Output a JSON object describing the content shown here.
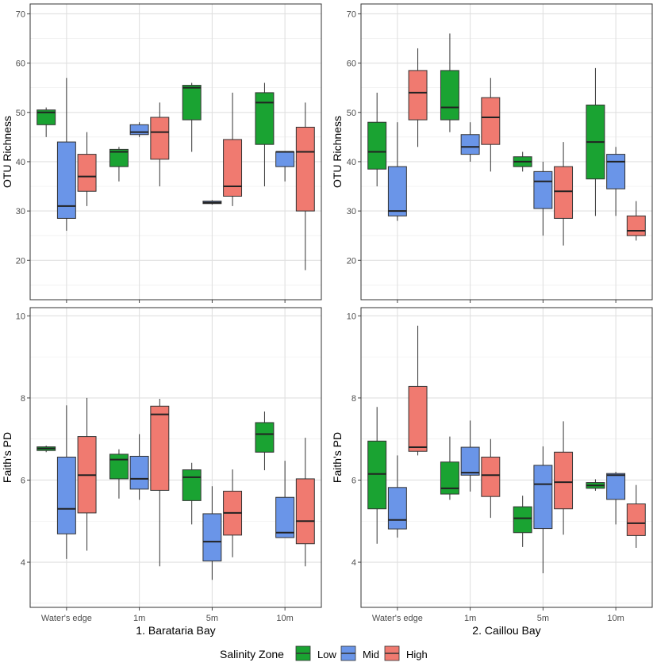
{
  "colors": {
    "low": "#1aa332",
    "mid": "#6a95e8",
    "high": "#f07a70",
    "grid": "#ebebeb",
    "panel_border": "#333333",
    "tick_text": "#4d4d4d"
  },
  "chart_data": [
    {
      "type": "box",
      "panel": "top-left",
      "ylabel": "OTU Richness",
      "xlabel": "",
      "ylim": [
        12,
        72
      ],
      "yticks": [
        20,
        30,
        40,
        50,
        60,
        70
      ],
      "categories": [
        "Water's edge",
        "1m",
        "5m",
        "10m"
      ],
      "series": [
        {
          "name": "Low",
          "color_key": "low",
          "boxes": [
            {
              "min": 45,
              "q1": 47.5,
              "median": 50,
              "q3": 50.5,
              "max": 51
            },
            {
              "min": 36,
              "q1": 39,
              "median": 42,
              "q3": 42.5,
              "max": 43
            },
            {
              "min": 42,
              "q1": 48.5,
              "median": 55,
              "q3": 55.5,
              "max": 56
            },
            {
              "min": 35,
              "q1": 43.5,
              "median": 52,
              "q3": 54,
              "max": 56
            }
          ]
        },
        {
          "name": "Mid",
          "color_key": "mid",
          "boxes": [
            {
              "min": 26,
              "q1": 28.5,
              "median": 31,
              "q3": 44,
              "max": 57
            },
            {
              "min": 45,
              "q1": 45.5,
              "median": 46,
              "q3": 47.5,
              "max": 48
            },
            {
              "min": 31.3,
              "q1": 31.5,
              "median": 31.7,
              "q3": 32,
              "max": 32.2
            },
            {
              "min": 36,
              "q1": 39,
              "median": 42,
              "q3": 42,
              "max": 42
            }
          ]
        },
        {
          "name": "High",
          "color_key": "high",
          "boxes": [
            {
              "min": 31,
              "q1": 34,
              "median": 37,
              "q3": 41.5,
              "max": 46
            },
            {
              "min": 35,
              "q1": 40.5,
              "median": 46,
              "q3": 49,
              "max": 52
            },
            {
              "min": 31,
              "q1": 33,
              "median": 35,
              "q3": 44.5,
              "max": 54
            },
            {
              "min": 18,
              "q1": 30,
              "median": 42,
              "q3": 47,
              "max": 52
            }
          ]
        }
      ]
    },
    {
      "type": "box",
      "panel": "top-right",
      "ylabel": "OTU Richness",
      "xlabel": "",
      "ylim": [
        12,
        72
      ],
      "yticks": [
        20,
        30,
        40,
        50,
        60,
        70
      ],
      "categories": [
        "Water's edge",
        "1m",
        "5m",
        "10m"
      ],
      "series": [
        {
          "name": "Low",
          "color_key": "low",
          "boxes": [
            {
              "min": 35,
              "q1": 38.5,
              "median": 42,
              "q3": 48,
              "max": 54
            },
            {
              "min": 46,
              "q1": 48.5,
              "median": 51,
              "q3": 58.5,
              "max": 66
            },
            {
              "min": 38,
              "q1": 39,
              "median": 40,
              "q3": 41,
              "max": 42
            },
            {
              "min": 29,
              "q1": 36.5,
              "median": 44,
              "q3": 51.5,
              "max": 59
            }
          ]
        },
        {
          "name": "Mid",
          "color_key": "mid",
          "boxes": [
            {
              "min": 28,
              "q1": 29,
              "median": 30,
              "q3": 39,
              "max": 48
            },
            {
              "min": 40,
              "q1": 41.5,
              "median": 43,
              "q3": 45.5,
              "max": 48
            },
            {
              "min": 25,
              "q1": 30.5,
              "median": 36,
              "q3": 38,
              "max": 40
            },
            {
              "min": 29,
              "q1": 34.5,
              "median": 40,
              "q3": 41.5,
              "max": 43
            }
          ]
        },
        {
          "name": "High",
          "color_key": "high",
          "boxes": [
            {
              "min": 43,
              "q1": 48.5,
              "median": 54,
              "q3": 58.5,
              "max": 63
            },
            {
              "min": 38,
              "q1": 43.5,
              "median": 49,
              "q3": 53,
              "max": 57
            },
            {
              "min": 23,
              "q1": 28.5,
              "median": 34,
              "q3": 39,
              "max": 44
            },
            {
              "min": 24,
              "q1": 25,
              "median": 26,
              "q3": 29,
              "max": 32
            }
          ]
        }
      ]
    },
    {
      "type": "box",
      "panel": "bottom-left",
      "ylabel": "Faith's PD",
      "xlabel": "1. Barataria Bay",
      "ylim": [
        2.9,
        10.2
      ],
      "yticks": [
        4,
        6,
        8,
        10
      ],
      "categories": [
        "Water's edge",
        "1m",
        "5m",
        "10m"
      ],
      "series": [
        {
          "name": "Low",
          "color_key": "low",
          "boxes": [
            {
              "min": 6.68,
              "q1": 6.72,
              "median": 6.77,
              "q3": 6.81,
              "max": 6.84
            },
            {
              "min": 5.55,
              "q1": 6.03,
              "median": 6.5,
              "q3": 6.63,
              "max": 6.75
            },
            {
              "min": 4.92,
              "q1": 5.5,
              "median": 6.07,
              "q3": 6.25,
              "max": 6.42
            },
            {
              "min": 6.24,
              "q1": 6.68,
              "median": 7.12,
              "q3": 7.4,
              "max": 7.67
            }
          ]
        },
        {
          "name": "Mid",
          "color_key": "mid",
          "boxes": [
            {
              "min": 4.08,
              "q1": 4.69,
              "median": 5.3,
              "q3": 6.56,
              "max": 7.82
            },
            {
              "min": 5.52,
              "q1": 5.78,
              "median": 6.03,
              "q3": 6.58,
              "max": 7.12
            },
            {
              "min": 3.57,
              "q1": 4.03,
              "median": 4.5,
              "q3": 5.18,
              "max": 5.85
            },
            {
              "min": 4.6,
              "q1": 4.6,
              "median": 4.72,
              "q3": 5.58,
              "max": 6.47
            }
          ]
        },
        {
          "name": "High",
          "color_key": "high",
          "boxes": [
            {
              "min": 4.28,
              "q1": 5.2,
              "median": 6.12,
              "q3": 7.06,
              "max": 8.0
            },
            {
              "min": 3.9,
              "q1": 5.75,
              "median": 7.6,
              "q3": 7.8,
              "max": 7.98
            },
            {
              "min": 4.12,
              "q1": 4.66,
              "median": 5.2,
              "q3": 5.73,
              "max": 6.26
            },
            {
              "min": 3.9,
              "q1": 4.45,
              "median": 5.0,
              "q3": 6.03,
              "max": 7.03
            }
          ]
        }
      ]
    },
    {
      "type": "box",
      "panel": "bottom-right",
      "ylabel": "Faith's PD",
      "xlabel": "2. Caillou Bay",
      "ylim": [
        2.9,
        10.2
      ],
      "yticks": [
        4,
        6,
        8,
        10
      ],
      "categories": [
        "Water's edge",
        "1m",
        "5m",
        "10m"
      ],
      "series": [
        {
          "name": "Low",
          "color_key": "low",
          "boxes": [
            {
              "min": 4.45,
              "q1": 5.3,
              "median": 6.15,
              "q3": 6.95,
              "max": 7.78
            },
            {
              "min": 5.52,
              "q1": 5.66,
              "median": 5.8,
              "q3": 6.44,
              "max": 7.06
            },
            {
              "min": 4.37,
              "q1": 4.72,
              "median": 5.07,
              "q3": 5.35,
              "max": 5.62
            },
            {
              "min": 5.74,
              "q1": 5.8,
              "median": 5.87,
              "q3": 5.94,
              "max": 6.02
            }
          ]
        },
        {
          "name": "Mid",
          "color_key": "mid",
          "boxes": [
            {
              "min": 4.6,
              "q1": 4.81,
              "median": 5.03,
              "q3": 5.82,
              "max": 6.6
            },
            {
              "min": 5.72,
              "q1": 6.12,
              "median": 6.18,
              "q3": 6.8,
              "max": 7.45
            },
            {
              "min": 3.73,
              "q1": 4.82,
              "median": 5.9,
              "q3": 6.36,
              "max": 6.82
            },
            {
              "min": 4.92,
              "q1": 5.53,
              "median": 6.12,
              "q3": 6.16,
              "max": 6.2
            }
          ]
        },
        {
          "name": "High",
          "color_key": "high",
          "boxes": [
            {
              "min": 6.6,
              "q1": 6.7,
              "median": 6.8,
              "q3": 8.28,
              "max": 9.76
            },
            {
              "min": 5.08,
              "q1": 5.6,
              "median": 6.12,
              "q3": 6.56,
              "max": 7.0
            },
            {
              "min": 4.67,
              "q1": 5.3,
              "median": 5.95,
              "q3": 6.68,
              "max": 7.43
            },
            {
              "min": 4.35,
              "q1": 4.65,
              "median": 4.95,
              "q3": 5.42,
              "max": 5.88
            }
          ]
        }
      ]
    }
  ],
  "legend": {
    "title": "Salinity Zone",
    "items": [
      {
        "label": "Low",
        "color_key": "low"
      },
      {
        "label": "Mid",
        "color_key": "mid"
      },
      {
        "label": "High",
        "color_key": "high"
      }
    ]
  }
}
